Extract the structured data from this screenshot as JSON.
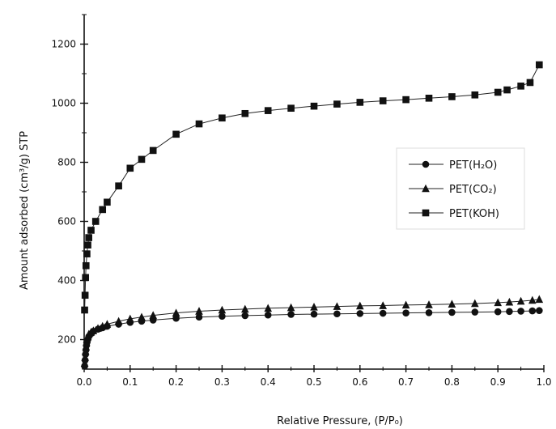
{
  "chart_data": {
    "type": "scatter",
    "xlabel": "Relative Pressure, (P/P₀)",
    "ylabel": "Amount adsorbed (cm³/g) STP",
    "xlim": [
      0,
      1.0
    ],
    "ylim": [
      100,
      1300
    ],
    "x_ticks": [
      "0.0",
      "0.1",
      "0.2",
      "0.3",
      "0.4",
      "0.5",
      "0.6",
      "0.7",
      "0.8",
      "0.9",
      "1.0"
    ],
    "y_ticks": [
      "200",
      "400",
      "600",
      "800",
      "1000",
      "1200"
    ],
    "grid": false,
    "legend_placement": "right",
    "series": [
      {
        "name": "PET(H₂O)",
        "marker": "circle",
        "x": [
          0.001,
          0.002,
          0.003,
          0.004,
          0.005,
          0.006,
          0.008,
          0.01,
          0.015,
          0.02,
          0.03,
          0.04,
          0.05,
          0.075,
          0.1,
          0.125,
          0.15,
          0.2,
          0.25,
          0.3,
          0.35,
          0.4,
          0.45,
          0.5,
          0.55,
          0.6,
          0.65,
          0.7,
          0.75,
          0.8,
          0.85,
          0.9,
          0.925,
          0.95,
          0.975,
          0.99
        ],
        "y": [
          110,
          130,
          150,
          165,
          180,
          190,
          200,
          210,
          220,
          228,
          235,
          240,
          245,
          252,
          258,
          262,
          266,
          272,
          276,
          279,
          281,
          283,
          285,
          286,
          287,
          288,
          289,
          290,
          291,
          292,
          293,
          294,
          295,
          296,
          297,
          298
        ]
      },
      {
        "name": "PET(CO₂)",
        "marker": "triangle",
        "x": [
          0.001,
          0.002,
          0.003,
          0.004,
          0.005,
          0.006,
          0.008,
          0.01,
          0.015,
          0.02,
          0.03,
          0.04,
          0.05,
          0.075,
          0.1,
          0.125,
          0.15,
          0.2,
          0.25,
          0.3,
          0.35,
          0.4,
          0.45,
          0.5,
          0.55,
          0.6,
          0.65,
          0.7,
          0.75,
          0.8,
          0.85,
          0.9,
          0.925,
          0.95,
          0.975,
          0.99
        ],
        "y": [
          120,
          140,
          160,
          175,
          190,
          200,
          210,
          218,
          225,
          230,
          238,
          245,
          252,
          262,
          270,
          276,
          282,
          290,
          296,
          300,
          303,
          306,
          308,
          310,
          312,
          314,
          315,
          317,
          318,
          320,
          322,
          325,
          327,
          330,
          333,
          336
        ]
      },
      {
        "name": "PET(KOH)",
        "marker": "square",
        "x": [
          0.001,
          0.002,
          0.003,
          0.004,
          0.006,
          0.008,
          0.01,
          0.015,
          0.025,
          0.04,
          0.05,
          0.075,
          0.1,
          0.125,
          0.15,
          0.2,
          0.25,
          0.3,
          0.35,
          0.4,
          0.45,
          0.5,
          0.55,
          0.6,
          0.65,
          0.7,
          0.75,
          0.8,
          0.85,
          0.9,
          0.92,
          0.95,
          0.97,
          0.99
        ],
        "y": [
          300,
          350,
          410,
          450,
          490,
          520,
          545,
          570,
          600,
          640,
          665,
          720,
          780,
          810,
          840,
          895,
          930,
          950,
          965,
          975,
          983,
          990,
          997,
          1003,
          1008,
          1012,
          1017,
          1022,
          1028,
          1037,
          1045,
          1058,
          1070,
          1130
        ]
      }
    ]
  }
}
